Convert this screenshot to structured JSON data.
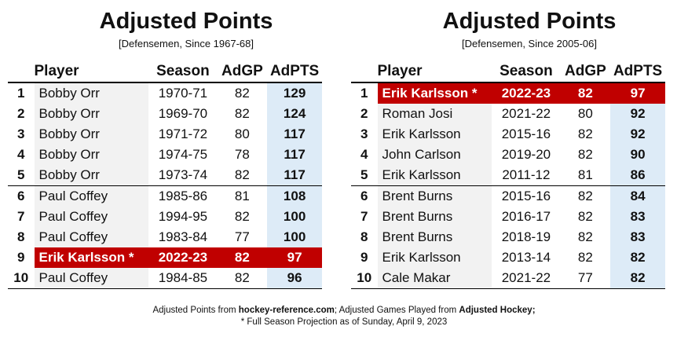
{
  "left": {
    "title": "Adjusted Points",
    "subtitle": "[Defensemen, Since 1967-68]",
    "headers": {
      "player": "Player",
      "season": "Season",
      "gp": "AdGP",
      "pts": "AdPTS"
    },
    "rows": [
      {
        "rank": "1",
        "player": "Bobby Orr",
        "season": "1970-71",
        "gp": "82",
        "pts": "129"
      },
      {
        "rank": "2",
        "player": "Bobby Orr",
        "season": "1969-70",
        "gp": "82",
        "pts": "124"
      },
      {
        "rank": "3",
        "player": "Bobby Orr",
        "season": "1971-72",
        "gp": "80",
        "pts": "117"
      },
      {
        "rank": "4",
        "player": "Bobby Orr",
        "season": "1974-75",
        "gp": "78",
        "pts": "117"
      },
      {
        "rank": "5",
        "player": "Bobby Orr",
        "season": "1973-74",
        "gp": "82",
        "pts": "117"
      },
      {
        "rank": "6",
        "player": "Paul Coffey",
        "season": "1985-86",
        "gp": "81",
        "pts": "108"
      },
      {
        "rank": "7",
        "player": "Paul Coffey",
        "season": "1994-95",
        "gp": "82",
        "pts": "100"
      },
      {
        "rank": "8",
        "player": "Paul Coffey",
        "season": "1983-84",
        "gp": "77",
        "pts": "100"
      },
      {
        "rank": "9",
        "player": "Erik Karlsson *",
        "season": "2022-23",
        "gp": "82",
        "pts": "97"
      },
      {
        "rank": "10",
        "player": "Paul Coffey",
        "season": "1984-85",
        "gp": "82",
        "pts": "96"
      }
    ]
  },
  "right": {
    "title": "Adjusted Points",
    "subtitle": "[Defensemen, Since 2005-06]",
    "headers": {
      "player": "Player",
      "season": "Season",
      "gp": "AdGP",
      "pts": "AdPTS"
    },
    "rows": [
      {
        "rank": "1",
        "player": "Erik Karlsson *",
        "season": "2022-23",
        "gp": "82",
        "pts": "97"
      },
      {
        "rank": "2",
        "player": "Roman Josi",
        "season": "2021-22",
        "gp": "80",
        "pts": "92"
      },
      {
        "rank": "3",
        "player": "Erik Karlsson",
        "season": "2015-16",
        "gp": "82",
        "pts": "92"
      },
      {
        "rank": "4",
        "player": "John Carlson",
        "season": "2019-20",
        "gp": "82",
        "pts": "90"
      },
      {
        "rank": "5",
        "player": "Erik Karlsson",
        "season": "2011-12",
        "gp": "81",
        "pts": "86"
      },
      {
        "rank": "6",
        "player": "Brent Burns",
        "season": "2015-16",
        "gp": "82",
        "pts": "84"
      },
      {
        "rank": "7",
        "player": "Brent Burns",
        "season": "2016-17",
        "gp": "82",
        "pts": "83"
      },
      {
        "rank": "8",
        "player": "Brent Burns",
        "season": "2018-19",
        "gp": "82",
        "pts": "83"
      },
      {
        "rank": "9",
        "player": "Erik Karlsson",
        "season": "2013-14",
        "gp": "82",
        "pts": "82"
      },
      {
        "rank": "10",
        "player": "Cale Makar",
        "season": "2021-22",
        "gp": "77",
        "pts": "82"
      }
    ]
  },
  "highlight_color": "#c00000",
  "points_column_color": "#ddebf7",
  "footer": {
    "line1_a": "Adjusted Points from ",
    "line1_b": "hockey-reference.com",
    "line1_c": "; Adjusted Games Played from ",
    "line1_d": "Adjusted Hockey;",
    "line2": "* Full Season Projection as of Sunday, April 9, 2023"
  }
}
